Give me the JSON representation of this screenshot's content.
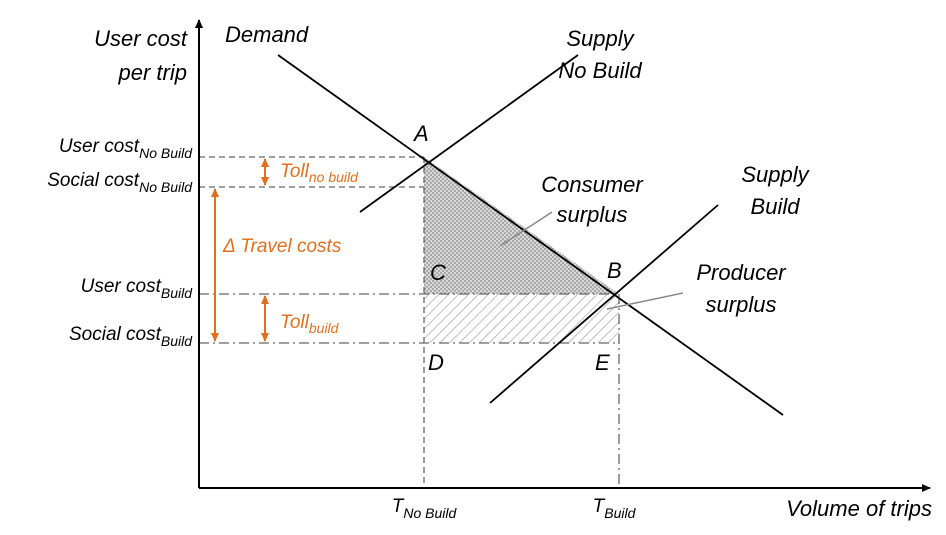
{
  "axes": {
    "y_title": [
      "User cost",
      "per trip"
    ],
    "x_title": "Volume of trips"
  },
  "curves": {
    "demand": "Demand",
    "supply_no_build": [
      "Supply",
      "No Build"
    ],
    "supply_build": [
      "Supply",
      "Build"
    ]
  },
  "points": {
    "a": "A",
    "b": "B",
    "c": "C",
    "d": "D",
    "e": "E"
  },
  "y_labels": [
    {
      "text": "User cost",
      "sub": "No Build"
    },
    {
      "text": "Social cost",
      "sub": "No Build"
    },
    {
      "text": "User cost",
      "sub": "Build"
    },
    {
      "text": "Social cost",
      "sub": "Build"
    }
  ],
  "x_labels": [
    {
      "text": "T",
      "sub": "No Build"
    },
    {
      "text": "T",
      "sub": "Build"
    }
  ],
  "annotations": {
    "toll_no_build": {
      "text": "Toll",
      "sub": "no build"
    },
    "travel_costs": "Δ Travel costs",
    "toll_build": {
      "text": "Toll",
      "sub": "build"
    }
  },
  "areas": {
    "consumer_surplus": [
      "Consumer",
      "surplus"
    ],
    "producer_surplus": [
      "Producer",
      "surplus"
    ]
  }
}
